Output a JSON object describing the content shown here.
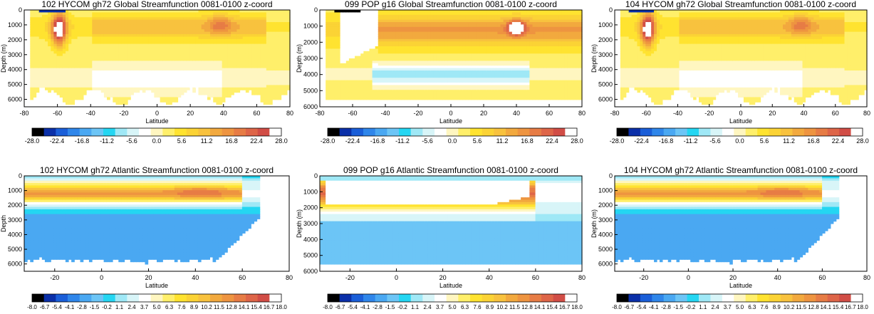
{
  "chart_data": [
    {
      "type": "heatmap",
      "title": "102 HYCOM gh72 Global Streamfunction 0081-0100  z-coord",
      "xlabel": "Latitude",
      "ylabel": "Depth (m)",
      "xlim": [
        -80,
        80
      ],
      "ylim": [
        6500,
        0
      ],
      "xticks": [
        "-80",
        "-60",
        "-40",
        "-20",
        "0",
        "20",
        "40",
        "60",
        "80"
      ],
      "yticks": [
        "0",
        "1000",
        "2000",
        "3000",
        "4000",
        "5000",
        "6000"
      ],
      "ytick_values": [
        0,
        1000,
        2000,
        3000,
        4000,
        5000,
        6000
      ],
      "colorbar_labels": [
        "-28.0",
        "-22.4",
        "-16.8",
        "-11.2",
        "-5.6",
        "0.0",
        "5.6",
        "11.2",
        "16.8",
        "22.4",
        "28.0"
      ]
    },
    {
      "type": "heatmap",
      "title": "099 POP g16 Global Streamfunction 0081-0100 z-coord",
      "xlabel": "Latitude",
      "ylabel": "Depth (m)",
      "xlim": [
        -80,
        80
      ],
      "ylim": [
        6000,
        0
      ],
      "xticks": [
        "-80",
        "-60",
        "-40",
        "-20",
        "0",
        "20",
        "40",
        "60",
        "80"
      ],
      "yticks": [
        "0",
        "1000",
        "2000",
        "3000",
        "4000",
        "5000",
        "6000"
      ],
      "ytick_values": [
        0,
        1000,
        2000,
        3000,
        4000,
        5000,
        6000
      ],
      "colorbar_labels": [
        "-28.0",
        "-22.4",
        "-16.8",
        "-11.2",
        "-5.6",
        "0.0",
        "5.6",
        "11.2",
        "16.8",
        "22.4",
        "28.0"
      ]
    },
    {
      "type": "heatmap",
      "title": "104 HYCOM gh72 Global Streamfunction 0081-0100 z-coord",
      "xlabel": "Latitude",
      "ylabel": "Depth (m)",
      "xlim": [
        -80,
        80
      ],
      "ylim": [
        6500,
        0
      ],
      "xticks": [
        "-80",
        "-60",
        "-40",
        "-20",
        "0",
        "20",
        "40",
        "60",
        "80"
      ],
      "yticks": [
        "0",
        "1000",
        "2000",
        "3000",
        "4000",
        "5000",
        "6000"
      ],
      "ytick_values": [
        0,
        1000,
        2000,
        3000,
        4000,
        5000,
        6000
      ],
      "colorbar_labels": [
        "-28.0",
        "-22.4",
        "-16.8",
        "-11.2",
        "-5.6",
        "0.0",
        "5.6",
        "11.2",
        "16.8",
        "22.4",
        "28.0"
      ]
    },
    {
      "type": "heatmap",
      "title": "102 HYCOM gh72 Atlantic Streamfunction 0081-0100 z-coord",
      "xlabel": "Latitude",
      "ylabel": "Depth",
      "xlim": [
        -33,
        80
      ],
      "ylim": [
        6500,
        0
      ],
      "xticks": [
        "-20",
        "0",
        "20",
        "40",
        "60",
        "80"
      ],
      "xtick_values": [
        -20,
        0,
        20,
        40,
        60,
        80
      ],
      "yticks": [
        "0",
        "1000",
        "2000",
        "3000",
        "4000",
        "5000",
        "6000"
      ],
      "ytick_values": [
        0,
        1000,
        2000,
        3000,
        4000,
        5000,
        6000
      ],
      "colorbar_labels": [
        "-8.0",
        "-6.7",
        "-5.4",
        "-4.1",
        "-2.8",
        "-1.5",
        "-0.2",
        "1.1",
        "2.4",
        "3.7",
        "5.0",
        "6.3",
        "7.6",
        "8.9",
        "10.2",
        "11.5",
        "12.8",
        "14.1",
        "15.4",
        "16.7",
        "18.0"
      ]
    },
    {
      "type": "heatmap",
      "title": "099 POP g16 Atlantic Streamfunction 0081-0100 z-coord",
      "xlabel": "Latitude",
      "ylabel": "Depth (m)",
      "xlim": [
        -33,
        80
      ],
      "ylim": [
        6000,
        0
      ],
      "xticks": [
        "-20",
        "0",
        "20",
        "40",
        "60",
        "80"
      ],
      "xtick_values": [
        -20,
        0,
        20,
        40,
        60,
        80
      ],
      "yticks": [
        "0",
        "1000",
        "2000",
        "3000",
        "4000",
        "5000",
        "6000"
      ],
      "ytick_values": [
        0,
        1000,
        2000,
        3000,
        4000,
        5000,
        6000
      ],
      "colorbar_labels": [
        "-8.0",
        "-6.7",
        "-5.4",
        "-4.1",
        "-2.8",
        "-1.5",
        "-0.2",
        "1.1",
        "2.4",
        "3.7",
        "5.0",
        "6.3",
        "7.6",
        "8.9",
        "10.2",
        "11.5",
        "12.8",
        "14.1",
        "15.4",
        "16.7",
        "18.0"
      ]
    },
    {
      "type": "heatmap",
      "title": "104 HYCOM gh72 Atlantic Streamfunction 0081-0100 z-coord",
      "xlabel": "Latitude",
      "ylabel": "Depth (m)",
      "xlim": [
        -33,
        80
      ],
      "ylim": [
        6500,
        0
      ],
      "xticks": [
        "-20",
        "0",
        "20",
        "40",
        "60",
        "80"
      ],
      "xtick_values": [
        -20,
        0,
        20,
        40,
        60,
        80
      ],
      "yticks": [
        "0",
        "1000",
        "2000",
        "3000",
        "4000",
        "5000",
        "6000"
      ],
      "ytick_values": [
        0,
        1000,
        2000,
        3000,
        4000,
        5000,
        6000
      ],
      "colorbar_labels": [
        "-8.0",
        "-6.7",
        "-5.4",
        "-4.1",
        "-2.8",
        "-1.5",
        "-0.2",
        "1.1",
        "2.4",
        "3.7",
        "5.0",
        "6.3",
        "7.6",
        "8.9",
        "10.2",
        "11.5",
        "12.8",
        "14.1",
        "15.4",
        "16.7",
        "18.0"
      ]
    }
  ],
  "colors": {
    "global_colorbar": [
      "#000000",
      "#0a2fa8",
      "#1a5ed8",
      "#2f86ea",
      "#4aa8f2",
      "#6cc5f6",
      "#24d6f2",
      "#9fe8f6",
      "#d8f5f8",
      "#ffffff",
      "#fff6c0",
      "#ffef6a",
      "#ffe330",
      "#fbd335",
      "#f8c23e",
      "#f2a93e",
      "#ee9440",
      "#e77c45",
      "#de6548",
      "#d14d46",
      "#ffffff"
    ],
    "atlantic_colorbar": [
      "#000000",
      "#0a2fa8",
      "#1a5ed8",
      "#2f86ea",
      "#4aa8f2",
      "#6cc5f6",
      "#24d6f2",
      "#9fe8f6",
      "#d8f5f8",
      "#ffffff",
      "#fff6c0",
      "#ffef6a",
      "#ffe330",
      "#fbd335",
      "#f8c23e",
      "#f2a93e",
      "#ee9440",
      "#e77c45",
      "#de6548",
      "#d14d46",
      "#ffffff"
    ]
  }
}
